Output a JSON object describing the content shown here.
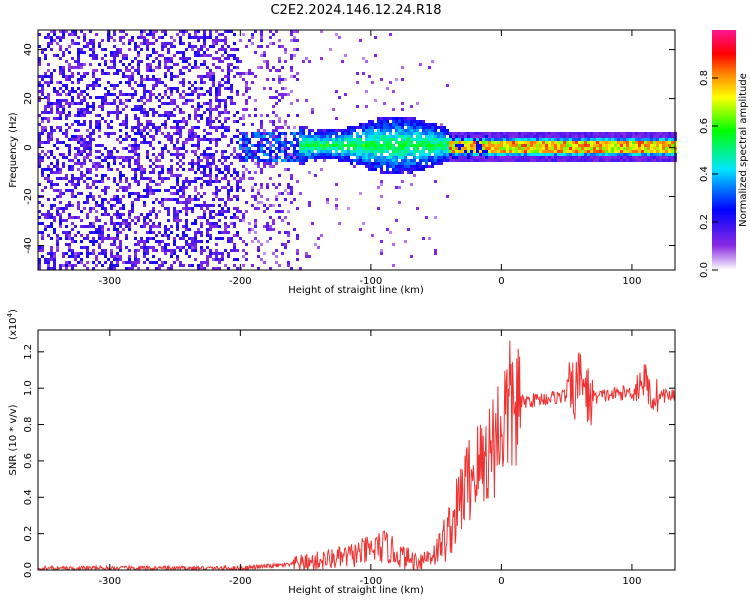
{
  "title": "C2E2.2024.146.12.24.R18",
  "chart_data": [
    {
      "type": "heatmap",
      "xlabel": "Height of straight line (km)",
      "ylabel": "Frequency (Hz)",
      "xlim": [
        -355,
        133
      ],
      "ylim": [
        -50,
        48
      ],
      "xticks": [
        -300,
        -200,
        -100,
        0,
        100
      ],
      "yticks": [
        -40,
        -20,
        0,
        20,
        40
      ],
      "colorbar": {
        "label": "Normalized spectral amplitude",
        "range": [
          0.0,
          1.0
        ],
        "ticks": [
          0.0,
          0.2,
          0.4,
          0.6,
          0.8
        ],
        "tick_labels": [
          "0.0",
          "0.2",
          "0.4",
          "0.6",
          "0.8"
        ],
        "colormap": [
          "#ffffff",
          "#8a2be2",
          "#0000ff",
          "#00e5ff",
          "#00ff00",
          "#ffff00",
          "#ff8000",
          "#ff0000",
          "#ff1493"
        ]
      },
      "regions": [
        {
          "x": [
            -355,
            -200
          ],
          "description_level": 0.2,
          "freq_band": [
            -50,
            48
          ]
        },
        {
          "x": [
            -200,
            -155
          ],
          "description_level": 0.15,
          "freq_band": [
            -50,
            48
          ]
        },
        {
          "x": [
            -155,
            -40
          ],
          "description_level": 0.35,
          "freq_band": [
            -12,
            10
          ]
        },
        {
          "x": [
            -40,
            133
          ],
          "description_level": 0.75,
          "freq_band": [
            -3,
            3
          ]
        }
      ],
      "grid": false
    },
    {
      "type": "line",
      "xlabel": "Height of straight line (km)",
      "ylabel": "SNR (10 * v/v)",
      "y_multiplier": "(x10",
      "y_multiplier_exp": "4",
      "y_multiplier_close": ")",
      "xlim": [
        -355,
        133
      ],
      "ylim": [
        0,
        1.32
      ],
      "xticks": [
        -300,
        -200,
        -100,
        0,
        100
      ],
      "yticks": [
        0.0,
        0.2,
        0.4,
        0.6,
        0.8,
        1.0,
        1.2
      ],
      "ytick_labels": [
        "0.0",
        "0.2",
        "0.4",
        "0.6",
        "0.8",
        "1.0",
        "1.2"
      ],
      "color": "#ee3333",
      "series": [
        {
          "x": [
            -355,
            -300,
            -250,
            -200,
            -180,
            -160,
            -150,
            -140,
            -130,
            -120,
            -110,
            -100,
            -95,
            -90,
            -85,
            -80,
            -75,
            -70,
            -65,
            -60,
            -55,
            -50,
            -45,
            -40,
            -35,
            -30,
            -25,
            -20,
            -15,
            -10,
            -5,
            0,
            5,
            10,
            15,
            20,
            30,
            40,
            50,
            55,
            60,
            62,
            65,
            70,
            80,
            90,
            100,
            105,
            110,
            115,
            120,
            125,
            133
          ],
          "values": [
            0.01,
            0.01,
            0.01,
            0.01,
            0.02,
            0.03,
            0.04,
            0.05,
            0.06,
            0.07,
            0.09,
            0.11,
            0.12,
            0.13,
            0.11,
            0.09,
            0.07,
            0.06,
            0.05,
            0.06,
            0.08,
            0.1,
            0.15,
            0.22,
            0.3,
            0.42,
            0.5,
            0.55,
            0.58,
            0.65,
            0.72,
            0.8,
            0.88,
            0.9,
            0.92,
            0.93,
            0.94,
            0.95,
            0.96,
            0.97,
            1.05,
            1.1,
            0.95,
            0.95,
            0.96,
            0.97,
            0.98,
            1.02,
            1.05,
            0.95,
            0.96,
            0.96,
            0.96
          ]
        }
      ],
      "grid": false
    }
  ]
}
